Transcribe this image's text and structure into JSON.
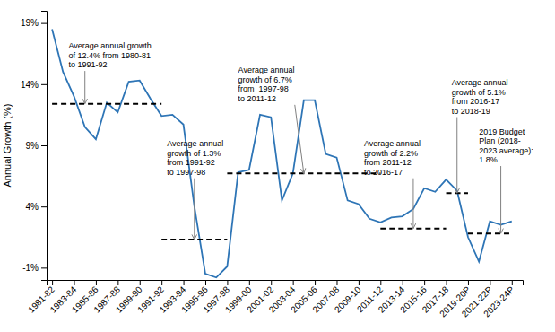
{
  "chart_data": {
    "type": "line",
    "ylabel": "Annual Growth (%)",
    "color": "#2E75B6",
    "x": [
      0,
      1,
      2,
      3,
      4,
      5,
      6,
      7,
      8,
      9,
      10,
      11,
      12,
      13,
      14,
      15,
      16,
      17,
      18,
      19,
      20,
      21,
      22,
      23,
      24,
      25,
      26,
      27,
      28,
      29,
      30,
      31,
      32,
      33,
      34,
      35,
      36,
      37,
      38,
      39,
      40,
      41,
      42
    ],
    "values": [
      18.5,
      15.0,
      13.0,
      10.5,
      9.5,
      12.5,
      11.7,
      14.2,
      14.3,
      12.8,
      11.4,
      11.5,
      10.7,
      4.0,
      -1.5,
      -1.8,
      -0.9,
      6.8,
      7.0,
      11.5,
      11.3,
      4.5,
      6.7,
      12.7,
      12.7,
      8.3,
      8.0,
      4.5,
      4.2,
      3.0,
      2.7,
      3.1,
      3.2,
      3.8,
      5.5,
      5.2,
      6.2,
      5.3,
      1.5,
      -0.5,
      2.8,
      2.5,
      2.8
    ],
    "avg_lines": [
      {
        "x_start": 0,
        "x_end": 10,
        "y": 12.4
      },
      {
        "x_start": 10,
        "x_end": 16,
        "y": 1.3
      },
      {
        "x_start": 16,
        "x_end": 30,
        "y": 6.7
      },
      {
        "x_start": 30,
        "x_end": 36,
        "y": 2.2
      },
      {
        "x_start": 36,
        "x_end": 38,
        "y": 5.1
      },
      {
        "x_start": 38,
        "x_end": 42,
        "y": 1.8
      }
    ],
    "annotations": [
      {
        "text": "Average annual growth\nof 12.4% from 1980-81\nto 1991-92",
        "xy": [
          3,
          12.4
        ],
        "xytext": [
          1.5,
          17.5
        ]
      },
      {
        "text": "Average annual\ngrowth of 1.3%\nfrom 1991-92\nto 1997-98",
        "xy": [
          13,
          1.3
        ],
        "xytext": [
          10.5,
          9.5
        ]
      },
      {
        "text": "Average annual\ngrowth of 6.7%\nfrom  1997-98\nto 2011-12",
        "xy": [
          23,
          6.7
        ],
        "xytext": [
          17.0,
          15.5
        ]
      },
      {
        "text": "Average annual\ngrowth of 2.2%\nfrom 2011-12\nto 2016-17",
        "xy": [
          33,
          2.2
        ],
        "xytext": [
          28.5,
          9.5
        ]
      },
      {
        "text": "Average annual\ngrowth of 5.1%\nfrom 2016-17\nto 2018-19",
        "xy": [
          37,
          5.1
        ],
        "xytext": [
          36.5,
          14.5
        ]
      },
      {
        "text": "2019 Budget\nPlan (2018-\n2023 average):\n1.8%",
        "xy": [
          41,
          1.8
        ],
        "xytext": [
          39.0,
          10.5
        ]
      }
    ],
    "xlim": [
      -0.5,
      43
    ],
    "xticks": [
      {
        "value": 0,
        "label": "1981-82"
      },
      {
        "value": 2,
        "label": "1983-84"
      },
      {
        "value": 4,
        "label": "1985-86"
      },
      {
        "value": 6,
        "label": "1987-88"
      },
      {
        "value": 8,
        "label": "1989-90"
      },
      {
        "value": 10,
        "label": "1991-92"
      },
      {
        "value": 12,
        "label": "1993-94"
      },
      {
        "value": 14,
        "label": "1995-96"
      },
      {
        "value": 16,
        "label": "1997-98"
      },
      {
        "value": 18,
        "label": "1999-00"
      },
      {
        "value": 20,
        "label": "2001-02"
      },
      {
        "value": 22,
        "label": "2003-04"
      },
      {
        "value": 24,
        "label": "2005-06"
      },
      {
        "value": 26,
        "label": "2007-08"
      },
      {
        "value": 28,
        "label": "2009-10"
      },
      {
        "value": 30,
        "label": "2011-12"
      },
      {
        "value": 32,
        "label": "2013-14"
      },
      {
        "value": 34,
        "label": "2015-16"
      },
      {
        "value": 36,
        "label": "2017-18"
      },
      {
        "value": 38,
        "label": "2019-20P"
      },
      {
        "value": 40,
        "label": "2021-22P"
      },
      {
        "value": 42,
        "label": "2023-24P"
      }
    ],
    "ylim": [
      -2,
      20
    ],
    "yticks": [
      {
        "value": -1,
        "label": "-1%"
      },
      {
        "value": 4,
        "label": "4%"
      },
      {
        "value": 9,
        "label": "9%"
      },
      {
        "value": 14,
        "label": "14%"
      },
      {
        "value": 19,
        "label": "19%"
      }
    ]
  }
}
